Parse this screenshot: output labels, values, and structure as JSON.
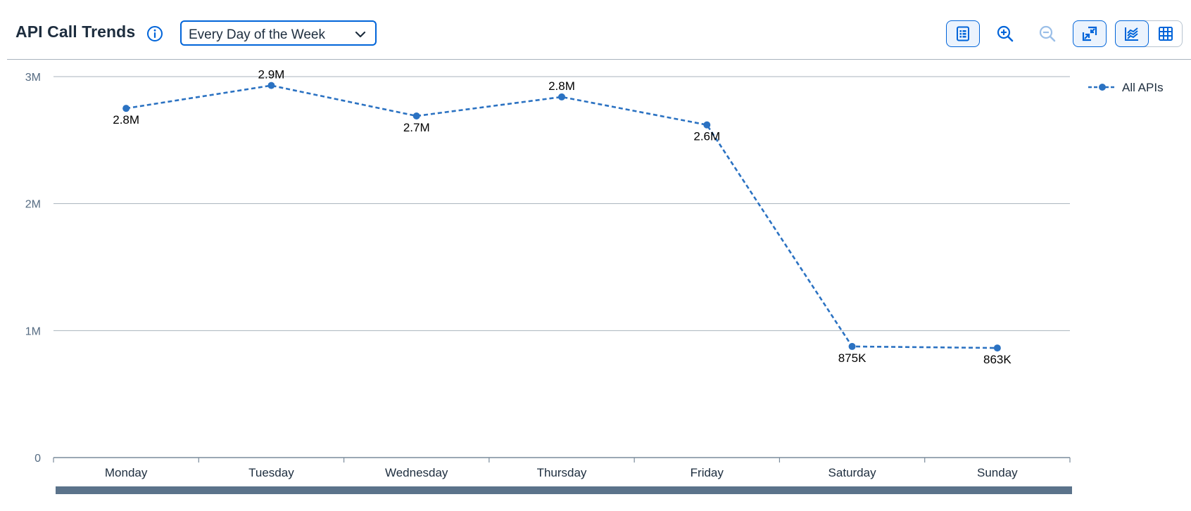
{
  "header": {
    "title": "API Call Trends",
    "period_select": {
      "value": "Every Day of the Week"
    }
  },
  "toolbar": {
    "icons": [
      "list-view-icon",
      "zoom-in-icon",
      "zoom-out-icon",
      "collapse-icon",
      "line-chart-icon",
      "table-view-icon"
    ]
  },
  "colors": {
    "accent": "#0064d9",
    "series": "#2b72c2",
    "grid": "#a8b3bd",
    "scrollbar": "#5b738b"
  },
  "chart_data": {
    "type": "line",
    "categories": [
      "Monday",
      "Tuesday",
      "Wednesday",
      "Thursday",
      "Friday",
      "Saturday",
      "Sunday"
    ],
    "series": [
      {
        "name": "All APIs",
        "values": [
          2750000,
          2930000,
          2690000,
          2840000,
          2620000,
          875000,
          863000
        ],
        "labels": [
          "2.8M",
          "2.9M",
          "2.7M",
          "2.8M",
          "2.6M",
          "875K",
          "863K"
        ]
      }
    ],
    "y_ticks": [
      {
        "value": 0,
        "label": "0"
      },
      {
        "value": 1000000,
        "label": "1M"
      },
      {
        "value": 2000000,
        "label": "2M"
      },
      {
        "value": 3000000,
        "label": "3M"
      }
    ],
    "ylim": [
      0,
      3000000
    ],
    "grid": true,
    "legend_position": "top-right",
    "line_style": "dashed"
  }
}
